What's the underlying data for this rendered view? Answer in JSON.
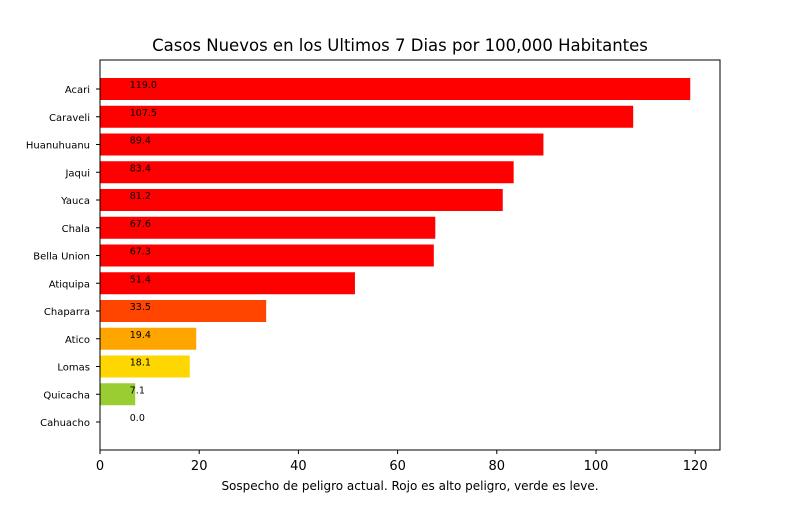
{
  "chart_data": {
    "type": "bar",
    "orientation": "horizontal",
    "title": "Casos Nuevos en los Ultimos 7 Dias por 100,000 Habitantes",
    "xlabel": "Sospecho de peligro actual. Rojo es alto peligro, verde es leve.",
    "ylabel": "",
    "xlim": [
      0,
      125
    ],
    "xticks": [
      0,
      20,
      40,
      60,
      80,
      100,
      120
    ],
    "grid": false,
    "categories": [
      "Acari",
      "Caraveli",
      "Huanuhuanu",
      "Jaqui",
      "Yauca",
      "Chala",
      "Bella Union",
      "Atiquipa",
      "Chaparra",
      "Atico",
      "Lomas",
      "Quicacha",
      "Cahuacho"
    ],
    "values": [
      119.0,
      107.5,
      89.4,
      83.4,
      81.2,
      67.6,
      67.3,
      51.4,
      33.5,
      19.4,
      18.1,
      7.1,
      0.0
    ],
    "labels": [
      "119.0",
      "107.5",
      "89.4",
      "83.4",
      "81.2",
      "67.6",
      "67.3",
      "51.4",
      "33.5",
      "19.4",
      "18.1",
      "7.1",
      "0.0"
    ],
    "colors": [
      "#ff0000",
      "#ff0000",
      "#ff0000",
      "#ff0000",
      "#ff0000",
      "#ff0000",
      "#ff0000",
      "#ff0000",
      "#ff4500",
      "#ffa500",
      "#ffd700",
      "#9acd32",
      "#008000"
    ]
  }
}
